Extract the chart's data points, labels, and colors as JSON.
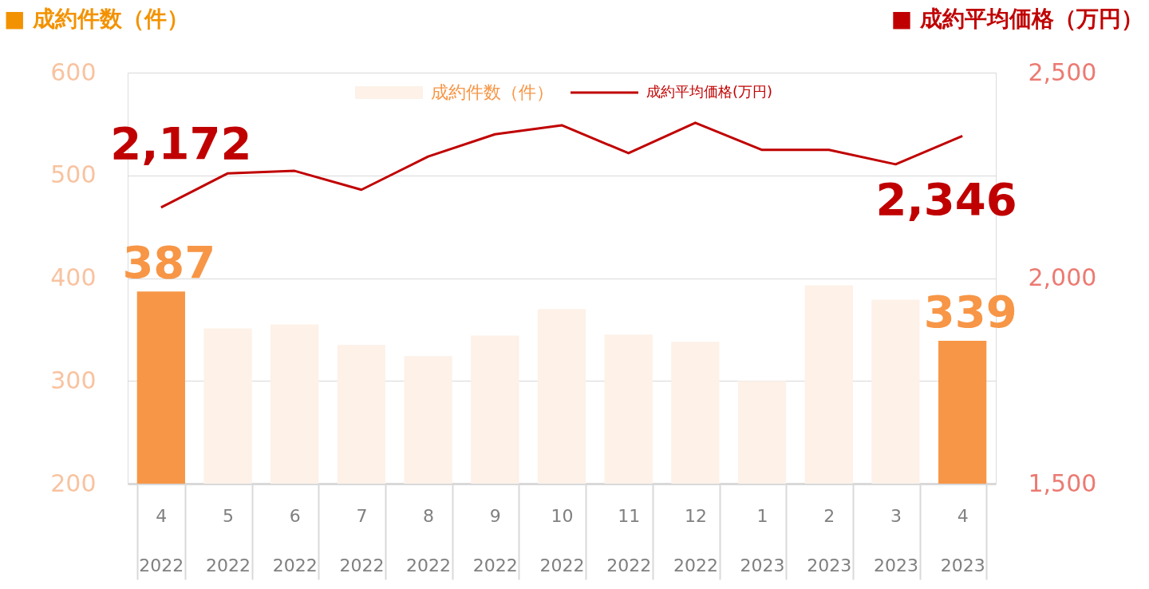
{
  "chart_data": {
    "type": "bar",
    "ylabel": "■ 成約件数（件）",
    "y2label": "■ 成約平均価格（万円）",
    "categories": [
      "4\n2022",
      "5\n2022",
      "6\n2022",
      "7\n2022",
      "8\n2022",
      "9\n2022",
      "10\n2022",
      "11\n2022",
      "12\n2022",
      "1\n2023",
      "2\n2023",
      "3\n2023",
      "4\n2023"
    ],
    "series": [
      {
        "name": "成約件数（件）",
        "type": "bar",
        "color": "#fdf1e8",
        "colors": [
          "#f79646",
          "#fdf1e8",
          "#fdf1e8",
          "#fdf1e8",
          "#fdf1e8",
          "#fdf1e8",
          "#fdf1e8",
          "#fdf1e8",
          "#fdf1e8",
          "#fdf1e8",
          "#fdf1e8",
          "#fdf1e8",
          "#f79646"
        ],
        "values": [
          387,
          351,
          355,
          335,
          324,
          344,
          370,
          345,
          338,
          300,
          393,
          379,
          339
        ],
        "value_labels": [
          "387",
          null,
          null,
          null,
          null,
          null,
          null,
          null,
          null,
          null,
          null,
          null,
          "339"
        ]
      },
      {
        "name": "成約平均価格(万円)",
        "type": "line",
        "axis": "y2",
        "color": "#c00000",
        "values": [
          2172,
          2255,
          2261,
          2215,
          2296,
          2350,
          2372,
          2304,
          2378,
          2312,
          2312,
          2277,
          2346
        ],
        "value_labels": [
          "2,172",
          null,
          null,
          null,
          null,
          null,
          null,
          null,
          null,
          null,
          null,
          null,
          "2,346"
        ]
      }
    ],
    "ylim": [
      200,
      600
    ],
    "yticks": [
      200,
      300,
      400,
      500,
      600
    ],
    "y2lim": [
      1500,
      2500
    ],
    "y2ticks": [
      {
        "value": 1500,
        "label": "1,500"
      },
      {
        "value": 2000,
        "label": "2,000"
      },
      {
        "value": 2500,
        "label": "2,500"
      }
    ],
    "grid": "y",
    "legend": "top"
  }
}
